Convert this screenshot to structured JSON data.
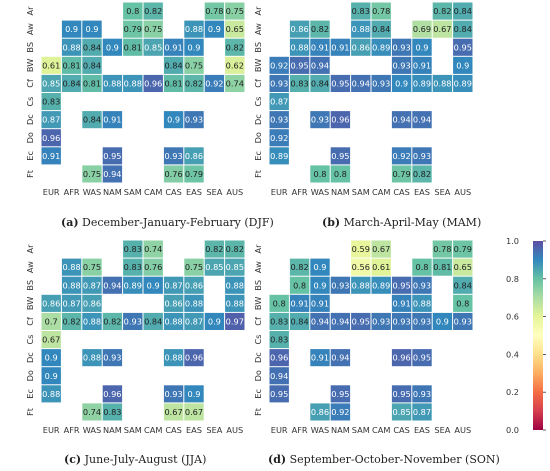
{
  "figure": {
    "colorbar": {
      "ticks": [
        "1.0",
        "0.8",
        "0.6",
        "0.4",
        "0.2",
        "0.0"
      ],
      "range": [
        0.0,
        1.0
      ],
      "colormap": "Spectral",
      "stops": [
        "#9e0142",
        "#d53e4f",
        "#f46d43",
        "#fdae61",
        "#fee08b",
        "#ffffbf",
        "#e6f598",
        "#abdda4",
        "#66c2a5",
        "#3288bd",
        "#5e4fa2"
      ]
    }
  },
  "chart_data": [
    {
      "type": "heatmap",
      "panel_letter": "(a)",
      "caption": "December-January-February (DJF)",
      "x_categories": [
        "EUR",
        "AFR",
        "WAS",
        "NAM",
        "SAM",
        "CAM",
        "CAS",
        "EAS",
        "SEA",
        "AUS"
      ],
      "y_categories": [
        "Ar",
        "Aw",
        "BS",
        "BW",
        "Cf",
        "Cs",
        "Dc",
        "Do",
        "Ec",
        "Ft"
      ],
      "values": [
        [
          null,
          null,
          null,
          null,
          0.8,
          0.82,
          null,
          null,
          0.78,
          0.75
        ],
        [
          null,
          0.9,
          0.9,
          null,
          0.79,
          0.75,
          null,
          0.88,
          0.9,
          0.65
        ],
        [
          null,
          0.88,
          0.84,
          0.9,
          0.81,
          0.85,
          0.91,
          0.9,
          null,
          0.82
        ],
        [
          0.61,
          0.81,
          0.84,
          null,
          null,
          null,
          0.84,
          0.75,
          null,
          0.62
        ],
        [
          0.85,
          0.84,
          0.81,
          0.88,
          0.88,
          0.96,
          0.81,
          0.82,
          0.92,
          0.74
        ],
        [
          0.83,
          null,
          null,
          null,
          null,
          null,
          null,
          null,
          null,
          null
        ],
        [
          0.87,
          null,
          0.84,
          0.91,
          null,
          null,
          0.9,
          0.93,
          null,
          null
        ],
        [
          0.96,
          null,
          null,
          null,
          null,
          null,
          null,
          null,
          null,
          null
        ],
        [
          0.91,
          null,
          null,
          0.95,
          null,
          null,
          0.93,
          0.86,
          null,
          null
        ],
        [
          null,
          null,
          0.75,
          0.94,
          null,
          null,
          0.76,
          0.79,
          null,
          null
        ]
      ]
    },
    {
      "type": "heatmap",
      "panel_letter": "(b)",
      "caption": "March-April-May (MAM)",
      "x_categories": [
        "EUR",
        "AFR",
        "WAS",
        "NAM",
        "SAM",
        "CAM",
        "CAS",
        "EAS",
        "SEA",
        "AUS"
      ],
      "y_categories": [
        "Ar",
        "Aw",
        "BS",
        "BW",
        "Cf",
        "Cs",
        "Dc",
        "Do",
        "Ec",
        "Ft"
      ],
      "values": [
        [
          null,
          null,
          null,
          null,
          0.83,
          0.78,
          null,
          null,
          0.82,
          0.84
        ],
        [
          null,
          0.86,
          0.82,
          null,
          0.88,
          0.84,
          null,
          0.69,
          0.67,
          0.84
        ],
        [
          null,
          0.88,
          0.91,
          0.91,
          0.86,
          0.89,
          0.93,
          0.9,
          null,
          0.95
        ],
        [
          0.92,
          0.95,
          0.94,
          null,
          null,
          null,
          0.93,
          0.91,
          null,
          0.9
        ],
        [
          0.93,
          0.83,
          0.84,
          0.95,
          0.94,
          0.93,
          0.9,
          0.89,
          0.88,
          0.89
        ],
        [
          0.87,
          null,
          null,
          null,
          null,
          null,
          null,
          null,
          null,
          null
        ],
        [
          0.93,
          null,
          0.93,
          0.96,
          null,
          null,
          0.94,
          0.94,
          null,
          null
        ],
        [
          0.92,
          null,
          null,
          null,
          null,
          null,
          null,
          null,
          null,
          null
        ],
        [
          0.89,
          null,
          null,
          0.95,
          null,
          null,
          0.92,
          0.93,
          null,
          null
        ],
        [
          null,
          null,
          0.8,
          0.8,
          null,
          null,
          0.79,
          0.82,
          null,
          null
        ]
      ]
    },
    {
      "type": "heatmap",
      "panel_letter": "(c)",
      "caption": "June-July-August (JJA)",
      "x_categories": [
        "EUR",
        "AFR",
        "WAS",
        "NAM",
        "SAM",
        "CAM",
        "CAS",
        "EAS",
        "SEA",
        "AUS"
      ],
      "y_categories": [
        "Ar",
        "Aw",
        "BS",
        "BW",
        "Cf",
        "Cs",
        "Dc",
        "Do",
        "Ec",
        "Ft"
      ],
      "values": [
        [
          null,
          null,
          null,
          null,
          0.83,
          0.74,
          null,
          null,
          0.82,
          0.82
        ],
        [
          null,
          0.88,
          0.75,
          null,
          0.83,
          0.76,
          null,
          0.75,
          0.85,
          0.85
        ],
        [
          null,
          0.88,
          0.87,
          0.94,
          0.89,
          0.9,
          0.87,
          0.86,
          null,
          0.88
        ],
        [
          0.86,
          0.87,
          0.86,
          null,
          null,
          null,
          0.86,
          0.88,
          null,
          0.88
        ],
        [
          0.7,
          0.82,
          0.88,
          0.82,
          0.93,
          0.84,
          0.88,
          0.87,
          0.9,
          0.97
        ],
        [
          0.67,
          null,
          null,
          null,
          null,
          null,
          null,
          null,
          null,
          null
        ],
        [
          0.9,
          null,
          0.88,
          0.93,
          null,
          null,
          0.88,
          0.96,
          null,
          null
        ],
        [
          0.9,
          null,
          null,
          null,
          null,
          null,
          null,
          null,
          null,
          null
        ],
        [
          0.88,
          null,
          null,
          0.96,
          null,
          null,
          0.93,
          0.9,
          null,
          null
        ],
        [
          null,
          null,
          0.74,
          0.83,
          null,
          null,
          0.67,
          0.67,
          null,
          null
        ]
      ]
    },
    {
      "type": "heatmap",
      "panel_letter": "(d)",
      "caption": "September-October-November (SON)",
      "x_categories": [
        "EUR",
        "AFR",
        "WAS",
        "NAM",
        "SAM",
        "CAM",
        "CAS",
        "EAS",
        "SEA",
        "AUS"
      ],
      "y_categories": [
        "Ar",
        "Aw",
        "BS",
        "BW",
        "Cf",
        "Cs",
        "Dc",
        "Do",
        "Ec",
        "Ft"
      ],
      "values": [
        [
          null,
          null,
          null,
          null,
          0.59,
          0.67,
          null,
          null,
          0.78,
          0.79
        ],
        [
          null,
          0.82,
          0.9,
          null,
          0.56,
          0.61,
          null,
          0.8,
          0.81,
          0.65
        ],
        [
          null,
          0.8,
          0.9,
          0.93,
          0.88,
          0.89,
          0.95,
          0.93,
          null,
          0.84
        ],
        [
          0.8,
          0.91,
          0.91,
          null,
          null,
          null,
          0.91,
          0.88,
          null,
          0.8
        ],
        [
          0.83,
          0.84,
          0.94,
          0.94,
          0.95,
          0.93,
          0.93,
          0.93,
          0.9,
          0.93
        ],
        [
          0.83,
          null,
          null,
          null,
          null,
          null,
          null,
          null,
          null,
          null
        ],
        [
          0.96,
          null,
          0.91,
          0.94,
          null,
          null,
          0.96,
          0.95,
          null,
          null
        ],
        [
          0.94,
          null,
          null,
          null,
          null,
          null,
          null,
          null,
          null,
          null
        ],
        [
          0.95,
          null,
          null,
          0.95,
          null,
          null,
          0.95,
          0.93,
          null,
          null
        ],
        [
          null,
          null,
          0.86,
          0.92,
          null,
          null,
          0.85,
          0.87,
          null,
          null
        ]
      ]
    }
  ]
}
